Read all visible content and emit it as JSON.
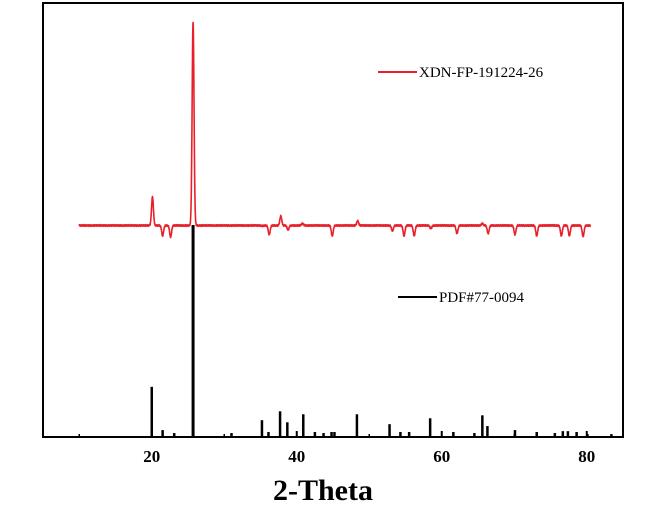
{
  "chart_data": {
    "type": "line",
    "title": "",
    "xlabel": "2-Theta",
    "ylabel": "",
    "xlim": [
      5,
      85
    ],
    "x_ticks": [
      20,
      40,
      60,
      80
    ],
    "x_tick_labels": [
      "20",
      "40",
      "60",
      "80"
    ],
    "grid": false,
    "legend_placement": "inside",
    "colors": {
      "sample": "#e8202a",
      "reference": "#000000",
      "axes": "#000000"
    },
    "series": [
      {
        "name": "XDN-FP-191224-26",
        "kind": "xrd-profile",
        "x_range": [
          10,
          80.5
        ],
        "baseline": 0.06,
        "peaks": [
          {
            "x": 20.1,
            "intensity": 0.193
          },
          {
            "x": 21.5,
            "intensity": 0.012
          },
          {
            "x": 22.6,
            "intensity": 0.006
          },
          {
            "x": 25.7,
            "intensity": 1.0
          },
          {
            "x": 35.3,
            "intensity": 0.058
          },
          {
            "x": 36.2,
            "intensity": 0.018
          },
          {
            "x": 37.8,
            "intensity": 0.104
          },
          {
            "x": 38.8,
            "intensity": 0.04
          },
          {
            "x": 40.8,
            "intensity": 0.069
          },
          {
            "x": 44.9,
            "intensity": 0.012
          },
          {
            "x": 48.4,
            "intensity": 0.081
          },
          {
            "x": 53.2,
            "intensity": 0.035
          },
          {
            "x": 54.8,
            "intensity": 0.012
          },
          {
            "x": 56.2,
            "intensity": 0.012
          },
          {
            "x": 58.5,
            "intensity": 0.046
          },
          {
            "x": 62.1,
            "intensity": 0.023
          },
          {
            "x": 65.6,
            "intensity": 0.069
          },
          {
            "x": 66.4,
            "intensity": 0.023
          },
          {
            "x": 70.1,
            "intensity": 0.018
          },
          {
            "x": 73.1,
            "intensity": 0.012
          },
          {
            "x": 76.5,
            "intensity": 0.012
          },
          {
            "x": 77.6,
            "intensity": 0.012
          },
          {
            "x": 79.5,
            "intensity": 0.009
          }
        ]
      },
      {
        "name": "PDF#77-0094",
        "kind": "stick-pattern",
        "lines": [
          {
            "x": 20.0,
            "intensity": 0.233
          },
          {
            "x": 21.5,
            "intensity": 0.028
          },
          {
            "x": 23.1,
            "intensity": 0.014
          },
          {
            "x": 25.7,
            "intensity": 1.0
          },
          {
            "x": 31.0,
            "intensity": 0.014
          },
          {
            "x": 35.2,
            "intensity": 0.075
          },
          {
            "x": 36.1,
            "intensity": 0.019
          },
          {
            "x": 37.7,
            "intensity": 0.117
          },
          {
            "x": 38.7,
            "intensity": 0.065
          },
          {
            "x": 40.9,
            "intensity": 0.103
          },
          {
            "x": 42.5,
            "intensity": 0.019
          },
          {
            "x": 43.7,
            "intensity": 0.014
          },
          {
            "x": 44.8,
            "intensity": 0.019
          },
          {
            "x": 45.2,
            "intensity": 0.019
          },
          {
            "x": 48.3,
            "intensity": 0.103
          },
          {
            "x": 52.8,
            "intensity": 0.056
          },
          {
            "x": 54.3,
            "intensity": 0.019
          },
          {
            "x": 55.5,
            "intensity": 0.019
          },
          {
            "x": 58.4,
            "intensity": 0.084
          },
          {
            "x": 61.6,
            "intensity": 0.019
          },
          {
            "x": 64.5,
            "intensity": 0.014
          },
          {
            "x": 65.6,
            "intensity": 0.098
          },
          {
            "x": 66.3,
            "intensity": 0.047
          },
          {
            "x": 70.1,
            "intensity": 0.028
          },
          {
            "x": 73.1,
            "intensity": 0.019
          },
          {
            "x": 75.6,
            "intensity": 0.014
          },
          {
            "x": 76.7,
            "intensity": 0.023
          },
          {
            "x": 77.4,
            "intensity": 0.023
          },
          {
            "x": 78.6,
            "intensity": 0.019
          },
          {
            "x": 80.1,
            "intensity": 0.009
          },
          {
            "x": 83.4,
            "intensity": 0.009
          }
        ]
      }
    ]
  }
}
